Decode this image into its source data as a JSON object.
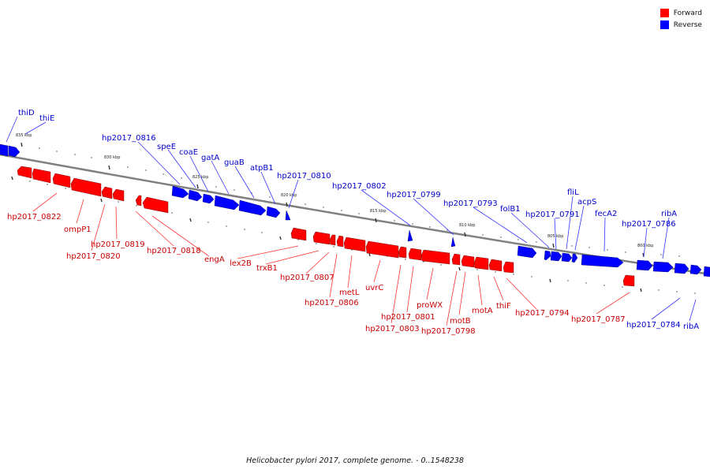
{
  "legend": {
    "forward_label": "Forward",
    "reverse_label": "Reverse",
    "forward_color": "#ff0000",
    "reverse_color": "#0000ff"
  },
  "caption": "Helicobacter pylori 2017, complete genome. - 0..1548238",
  "colors": {
    "forward": "#ff0000",
    "reverse": "#0000ff",
    "line": "#ff3333",
    "rline": "#3333ff",
    "backbone": "#808080"
  },
  "scale_labels": [
    "835 kbp",
    "830 kbp",
    "825 kbp",
    "820 kbp",
    "815 kbp",
    "810 kbp",
    "805 kbp",
    "800 kbp"
  ],
  "forward_gene_labels": [
    "hp2017_0822",
    "ompP1",
    "hp2017_0819",
    "hp2017_0820",
    "hp2017_0818",
    "engA",
    "lex2B",
    "trxB1",
    "hp2017_0807",
    "hp2017_0806",
    "metL",
    "uvrC",
    "hp2017_0801",
    "hp2017_0803",
    "proWX",
    "motB",
    "hp2017_0798",
    "motA",
    "thiF",
    "hp2017_0794",
    "hp2017_0787"
  ],
  "reverse_gene_labels": [
    "thiD",
    "thiE",
    "hp2017_0816",
    "speE",
    "coaE",
    "gatA",
    "guaB",
    "atpB1",
    "hp2017_0810",
    "hp2017_0802",
    "hp2017_0799",
    "hp2017_0793",
    "folB1",
    "hp2017_0791",
    "fliL",
    "acpS",
    "fecA2",
    "hp2017_0786",
    "ribA",
    "hp2017_0784",
    "ribA"
  ]
}
